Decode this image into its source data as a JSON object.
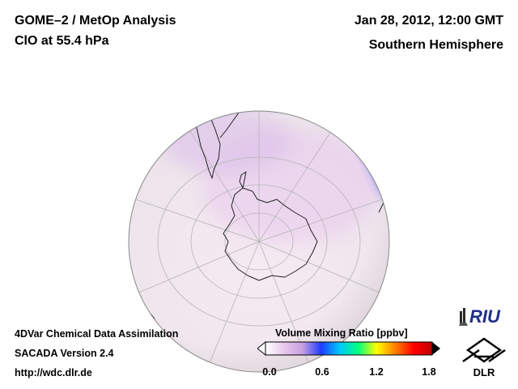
{
  "header": {
    "product_title": "GOME–2 / MetOp Analysis",
    "species": "ClO at 55.4 hPa",
    "datetime": "Jan 28, 2012, 12:00 GMT",
    "region": "Southern Hemisphere"
  },
  "footer": {
    "line1": "4DVar Chemical Data Assimilation",
    "line2": "SACADA Version 2.4",
    "line3": "http://wdc.dlr.de"
  },
  "colorbar": {
    "title": "Volume Mixing Ratio [ppbv]",
    "min": 0.0,
    "max": 1.8,
    "ticks": [
      "0.0",
      "0.6",
      "1.2",
      "1.8"
    ],
    "tick_values": [
      0.0,
      0.6,
      1.2,
      1.8
    ],
    "colors": [
      "#ffffff",
      "#e8c8ec",
      "#c8a0e0",
      "#1e3cff",
      "#00c8ff",
      "#00ff80",
      "#ffff00",
      "#ff8000",
      "#ff0000",
      "#c00000"
    ]
  },
  "logos": {
    "riu": "RIU",
    "dlr": "DLR"
  },
  "map": {
    "projection": "orthographic, south polar view",
    "colors": {
      "background_low": "#f5eef3",
      "enhanced_band": "#2850ff",
      "moderate": "#e4c6ec",
      "coastline": "#222222",
      "graticule": "#b4b4b4"
    }
  }
}
